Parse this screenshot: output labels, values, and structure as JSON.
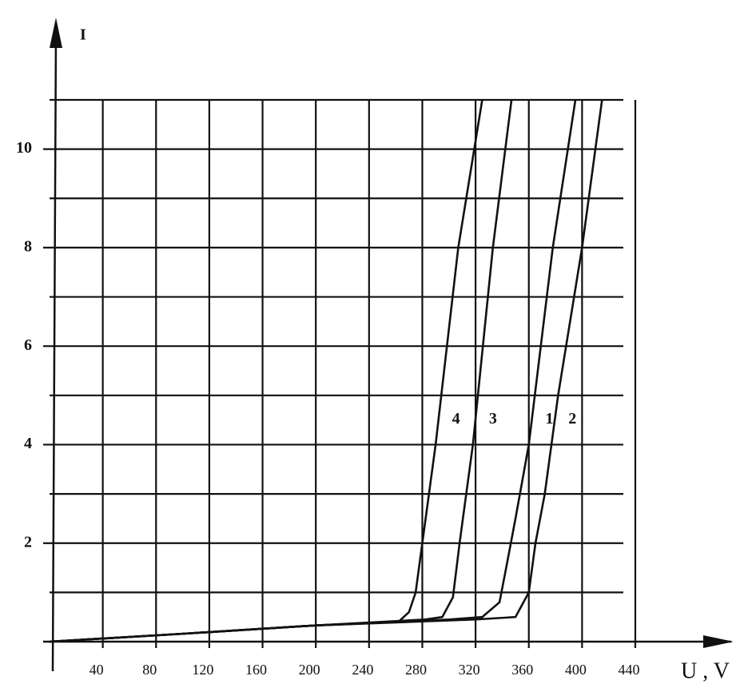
{
  "chart_data": {
    "type": "line",
    "x_label": "U , V",
    "y_label": "I",
    "xlim": [
      0,
      440
    ],
    "ylim": [
      0,
      11
    ],
    "xticks": [
      40,
      80,
      120,
      160,
      200,
      240,
      280,
      320,
      360,
      400,
      440
    ],
    "yticks": [
      2,
      4,
      6,
      8,
      10
    ],
    "yminor": [
      1,
      3,
      5,
      7,
      9,
      11
    ],
    "grid": true,
    "series": [
      {
        "name": "4",
        "color": "#111111",
        "x": [
          0,
          100,
          200,
          262,
          270,
          275,
          280,
          290,
          307,
          325
        ],
        "values": [
          0,
          0.16,
          0.33,
          0.4,
          0.6,
          1,
          2,
          4,
          8,
          11
        ]
      },
      {
        "name": "3",
        "color": "#111111",
        "x": [
          0,
          100,
          200,
          282,
          295,
          303,
          308,
          318,
          333,
          347
        ],
        "values": [
          0,
          0.16,
          0.33,
          0.45,
          0.5,
          0.9,
          2,
          4,
          8,
          11
        ]
      },
      {
        "name": "1",
        "color": "#111111",
        "x": [
          0,
          100,
          200,
          300,
          325,
          338,
          343,
          350,
          360,
          378,
          395
        ],
        "values": [
          0,
          0.16,
          0.33,
          0.45,
          0.5,
          0.8,
          1.5,
          2.5,
          4,
          8,
          11
        ]
      },
      {
        "name": "2",
        "color": "#111111",
        "x": [
          0,
          100,
          200,
          320,
          350,
          360,
          365,
          372,
          382,
          400,
          415
        ],
        "values": [
          0,
          0.16,
          0.33,
          0.45,
          0.5,
          1,
          2,
          3,
          5,
          8,
          11
        ]
      }
    ]
  }
}
